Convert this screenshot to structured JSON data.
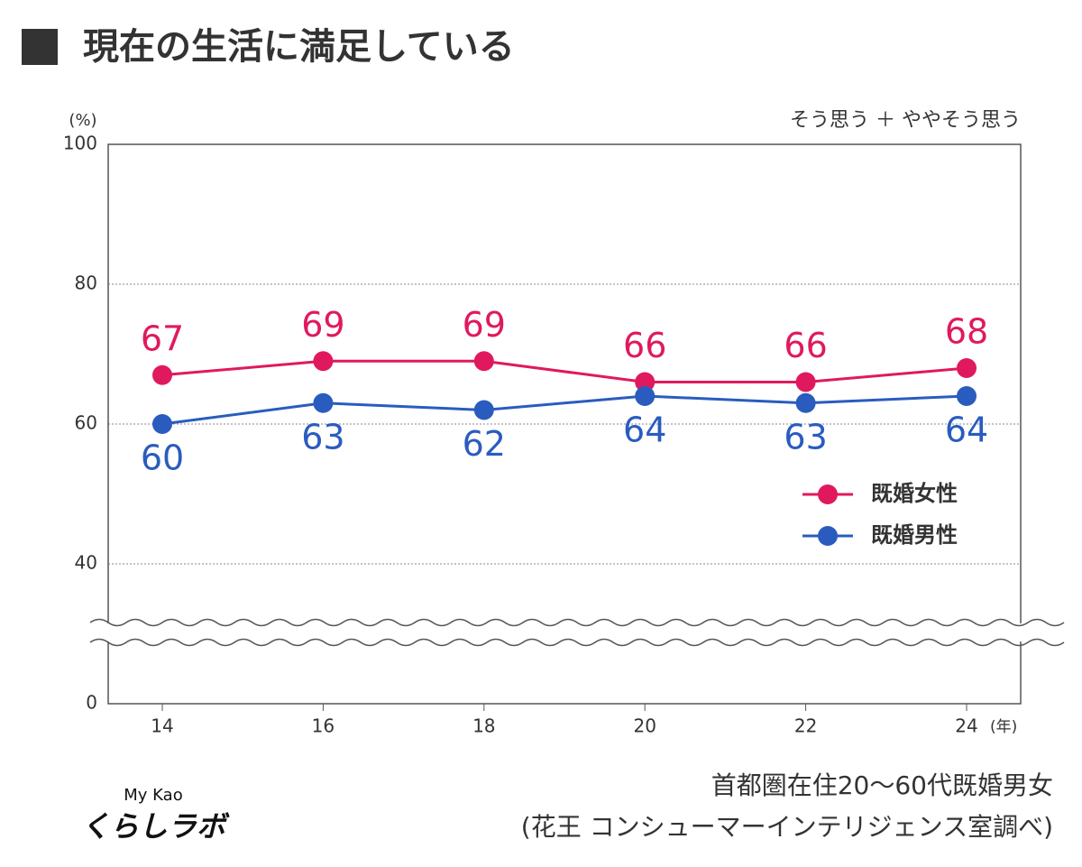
{
  "chart_data": {
    "type": "line",
    "title": "現在の生活に満足している",
    "note": "そう思う ＋ ややそう思う",
    "y_unit": "(%)",
    "x_unit": "(年)",
    "categories": [
      "14",
      "16",
      "18",
      "20",
      "22",
      "24"
    ],
    "series": [
      {
        "name": "既婚女性",
        "color": "#e0195e",
        "values": [
          67,
          69,
          69,
          66,
          66,
          68
        ]
      },
      {
        "name": "既婚男性",
        "color": "#2a5cbf",
        "values": [
          60,
          63,
          62,
          64,
          63,
          64
        ]
      }
    ],
    "ylim": [
      0,
      100
    ],
    "yticks": [
      0,
      40,
      60,
      80,
      100
    ],
    "axis_break": true,
    "grid": true,
    "legend": "right",
    "source": [
      "首都圏在住20～60代既婚男女",
      "(花王 コンシューマーインテリジェンス室調べ)"
    ],
    "logo": [
      "My Kao",
      "くらしラボ"
    ]
  }
}
